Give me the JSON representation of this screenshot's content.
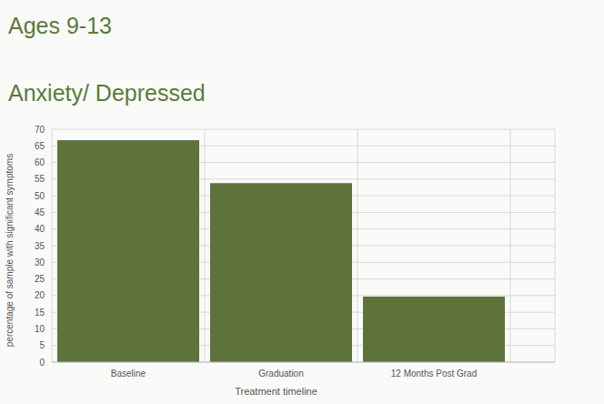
{
  "chart_data": {
    "type": "bar",
    "subtitle": "Ages 9-13",
    "title": "Anxiety/ Depressed",
    "x_label": "Treatment timeline",
    "y_label": "percentage of sample with significant symptoms",
    "categories": [
      "Baseline",
      "Graduation",
      "12 Months Post Grad"
    ],
    "values": [
      66.7,
      53.8,
      19.7
    ],
    "color": "#5e723c",
    "ylim": [
      0,
      70
    ],
    "yticks": [
      0,
      5,
      10,
      15,
      20,
      25,
      30,
      35,
      40,
      45,
      50,
      55,
      60,
      65,
      70
    ],
    "grid": true
  }
}
